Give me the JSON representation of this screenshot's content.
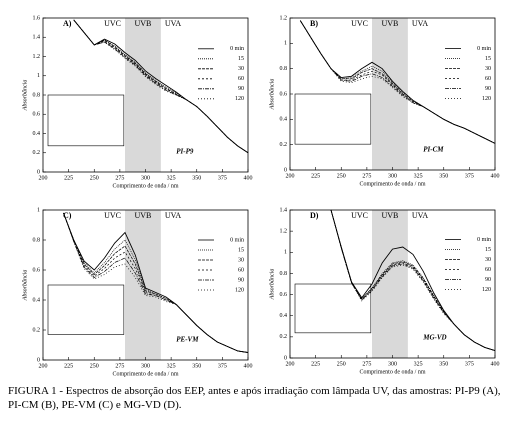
{
  "chart_data": [
    {
      "type": "line",
      "panel": "A)",
      "annotation": "PI-P9",
      "xlabel": "Comprimento de onda / nm",
      "ylabel": "Absorbância",
      "xlim": [
        200,
        400
      ],
      "xticks": [
        200,
        225,
        250,
        275,
        300,
        325,
        350,
        375,
        400
      ],
      "ylim": [
        0,
        1.6
      ],
      "yticks": [
        0.0,
        0.2,
        0.4,
        0.6,
        0.8,
        1.0,
        1.2,
        1.4,
        1.6
      ],
      "legend": "right",
      "regions": [
        {
          "label": "UVC",
          "range": [
            200,
            280
          ]
        },
        {
          "label": "UVB",
          "range": [
            280,
            315
          ],
          "shaded": true
        },
        {
          "label": "UVA",
          "range": [
            315,
            400
          ]
        }
      ],
      "x": [
        230,
        240,
        250,
        260,
        270,
        280,
        290,
        300,
        310,
        320,
        330,
        340,
        350,
        360,
        370,
        380,
        390,
        400
      ],
      "series": [
        {
          "name": "0 min",
          "color": "#000000",
          "dash": "none",
          "values": [
            1.58,
            1.45,
            1.32,
            1.38,
            1.33,
            1.24,
            1.16,
            1.05,
            0.97,
            0.9,
            0.83,
            0.75,
            0.68,
            0.58,
            0.47,
            0.36,
            0.27,
            0.2
          ]
        },
        {
          "name": "15",
          "color": "#000000",
          "dash": "1,1",
          "values": [
            1.58,
            1.45,
            1.32,
            1.37,
            1.31,
            1.22,
            1.14,
            1.03,
            0.95,
            0.88,
            0.82,
            0.75,
            0.68,
            0.58,
            0.47,
            0.36,
            0.27,
            0.2
          ]
        },
        {
          "name": "30",
          "color": "#000000",
          "dash": "3,1",
          "values": [
            1.58,
            1.45,
            1.32,
            1.37,
            1.3,
            1.21,
            1.13,
            1.02,
            0.94,
            0.87,
            0.81,
            0.75,
            0.68,
            0.58,
            0.47,
            0.36,
            0.27,
            0.2
          ]
        },
        {
          "name": "60",
          "color": "#000000",
          "dash": "2,2",
          "values": [
            1.58,
            1.45,
            1.32,
            1.36,
            1.29,
            1.2,
            1.12,
            1.01,
            0.93,
            0.86,
            0.81,
            0.75,
            0.68,
            0.58,
            0.47,
            0.36,
            0.27,
            0.2
          ]
        },
        {
          "name": "90",
          "color": "#000000",
          "dash": "4,1,1,1",
          "values": [
            1.58,
            1.45,
            1.32,
            1.35,
            1.28,
            1.19,
            1.11,
            1.0,
            0.92,
            0.85,
            0.8,
            0.75,
            0.68,
            0.58,
            0.47,
            0.36,
            0.27,
            0.2
          ]
        },
        {
          "name": "120",
          "color": "#000000",
          "dash": "1,2",
          "values": [
            1.58,
            1.45,
            1.32,
            1.35,
            1.27,
            1.18,
            1.1,
            0.99,
            0.91,
            0.84,
            0.8,
            0.75,
            0.68,
            0.58,
            0.47,
            0.36,
            0.27,
            0.2
          ]
        }
      ]
    },
    {
      "type": "line",
      "panel": "B)",
      "annotation": "PI-CM",
      "xlabel": "Comprimento de onda / nm",
      "ylabel": "Absorbância",
      "xlim": [
        200,
        400
      ],
      "xticks": [
        200,
        225,
        250,
        275,
        300,
        325,
        350,
        375,
        400
      ],
      "ylim": [
        0,
        1.2
      ],
      "yticks": [
        0.0,
        0.2,
        0.4,
        0.6,
        0.8,
        1.0,
        1.2
      ],
      "legend": "right",
      "regions": [
        {
          "label": "UVC",
          "range": [
            200,
            280
          ]
        },
        {
          "label": "UVB",
          "range": [
            280,
            315
          ],
          "shaded": true
        },
        {
          "label": "UVA",
          "range": [
            315,
            400
          ]
        }
      ],
      "x": [
        210,
        220,
        230,
        240,
        250,
        260,
        270,
        280,
        290,
        300,
        310,
        320,
        330,
        340,
        350,
        360,
        370,
        380,
        390,
        400
      ],
      "series": [
        {
          "name": "0 min",
          "color": "#000000",
          "dash": "none",
          "values": [
            1.18,
            1.05,
            0.92,
            0.8,
            0.73,
            0.74,
            0.8,
            0.85,
            0.8,
            0.7,
            0.62,
            0.55,
            0.5,
            0.45,
            0.4,
            0.36,
            0.33,
            0.29,
            0.25,
            0.21
          ]
        },
        {
          "name": "15",
          "color": "#000000",
          "dash": "1,1",
          "values": [
            1.18,
            1.05,
            0.92,
            0.8,
            0.72,
            0.73,
            0.78,
            0.82,
            0.78,
            0.69,
            0.61,
            0.55,
            0.5,
            0.45,
            0.4,
            0.36,
            0.33,
            0.29,
            0.25,
            0.21
          ]
        },
        {
          "name": "30",
          "color": "#000000",
          "dash": "3,1",
          "values": [
            1.18,
            1.05,
            0.92,
            0.8,
            0.72,
            0.72,
            0.77,
            0.8,
            0.76,
            0.68,
            0.6,
            0.54,
            0.5,
            0.45,
            0.4,
            0.36,
            0.33,
            0.29,
            0.25,
            0.21
          ]
        },
        {
          "name": "60",
          "color": "#000000",
          "dash": "2,2",
          "values": [
            1.18,
            1.05,
            0.92,
            0.8,
            0.71,
            0.71,
            0.75,
            0.78,
            0.75,
            0.67,
            0.6,
            0.54,
            0.5,
            0.45,
            0.4,
            0.36,
            0.33,
            0.29,
            0.25,
            0.21
          ]
        },
        {
          "name": "90",
          "color": "#000000",
          "dash": "4,1,1,1",
          "values": [
            1.18,
            1.05,
            0.92,
            0.8,
            0.71,
            0.7,
            0.74,
            0.76,
            0.73,
            0.66,
            0.59,
            0.53,
            0.5,
            0.45,
            0.4,
            0.36,
            0.33,
            0.29,
            0.25,
            0.21
          ]
        },
        {
          "name": "120",
          "color": "#000000",
          "dash": "1,2",
          "values": [
            1.18,
            1.05,
            0.92,
            0.8,
            0.7,
            0.69,
            0.72,
            0.74,
            0.72,
            0.65,
            0.58,
            0.53,
            0.5,
            0.45,
            0.4,
            0.36,
            0.33,
            0.29,
            0.25,
            0.21
          ]
        }
      ]
    },
    {
      "type": "line",
      "panel": "C)",
      "annotation": "PE-VM",
      "xlabel": "Comprimento de onda / nm",
      "ylabel": "Absorbância",
      "xlim": [
        200,
        400
      ],
      "xticks": [
        200,
        225,
        250,
        275,
        300,
        325,
        350,
        375,
        400
      ],
      "ylim": [
        0,
        1.0
      ],
      "yticks": [
        0.0,
        0.2,
        0.4,
        0.6,
        0.8,
        1.0
      ],
      "legend": "right",
      "regions": [
        {
          "label": "UVC",
          "range": [
            200,
            280
          ]
        },
        {
          "label": "UVB",
          "range": [
            280,
            315
          ],
          "shaded": true
        },
        {
          "label": "UVA",
          "range": [
            315,
            400
          ]
        }
      ],
      "x": [
        220,
        230,
        240,
        250,
        260,
        270,
        280,
        290,
        300,
        310,
        320,
        330,
        340,
        350,
        360,
        370,
        380,
        390,
        400
      ],
      "series": [
        {
          "name": "0 min",
          "color": "#000000",
          "dash": "none",
          "values": [
            0.98,
            0.8,
            0.66,
            0.6,
            0.68,
            0.78,
            0.85,
            0.7,
            0.48,
            0.45,
            0.42,
            0.37,
            0.3,
            0.23,
            0.17,
            0.12,
            0.09,
            0.06,
            0.05
          ]
        },
        {
          "name": "15",
          "color": "#000000",
          "dash": "1,1",
          "values": [
            0.98,
            0.8,
            0.65,
            0.58,
            0.65,
            0.74,
            0.8,
            0.67,
            0.47,
            0.44,
            0.41,
            0.37,
            0.3,
            0.23,
            0.17,
            0.12,
            0.09,
            0.06,
            0.05
          ]
        },
        {
          "name": "30",
          "color": "#000000",
          "dash": "3,1",
          "values": [
            0.98,
            0.8,
            0.64,
            0.57,
            0.63,
            0.71,
            0.76,
            0.64,
            0.46,
            0.44,
            0.41,
            0.37,
            0.3,
            0.23,
            0.17,
            0.12,
            0.09,
            0.06,
            0.05
          ]
        },
        {
          "name": "60",
          "color": "#000000",
          "dash": "2,2",
          "values": [
            0.98,
            0.79,
            0.63,
            0.56,
            0.61,
            0.68,
            0.72,
            0.61,
            0.45,
            0.43,
            0.4,
            0.37,
            0.3,
            0.23,
            0.17,
            0.12,
            0.09,
            0.06,
            0.05
          ]
        },
        {
          "name": "90",
          "color": "#000000",
          "dash": "4,1,1,1",
          "values": [
            0.98,
            0.79,
            0.62,
            0.55,
            0.59,
            0.65,
            0.68,
            0.58,
            0.44,
            0.43,
            0.4,
            0.37,
            0.3,
            0.23,
            0.17,
            0.12,
            0.09,
            0.06,
            0.05
          ]
        },
        {
          "name": "120",
          "color": "#000000",
          "dash": "1,2",
          "values": [
            0.98,
            0.79,
            0.61,
            0.54,
            0.57,
            0.62,
            0.64,
            0.55,
            0.43,
            0.42,
            0.39,
            0.37,
            0.3,
            0.23,
            0.17,
            0.12,
            0.09,
            0.06,
            0.05
          ]
        }
      ]
    },
    {
      "type": "line",
      "panel": "D)",
      "annotation": "MG-VD",
      "xlabel": "Comprimento de onda / nm",
      "ylabel": "Absorbância",
      "xlim": [
        200,
        400
      ],
      "xticks": [
        200,
        225,
        250,
        275,
        300,
        325,
        350,
        375,
        400
      ],
      "ylim": [
        0,
        1.4
      ],
      "yticks": [
        0.0,
        0.2,
        0.4,
        0.6,
        0.8,
        1.0,
        1.2,
        1.4
      ],
      "legend": "right",
      "regions": [
        {
          "label": "UVC",
          "range": [
            200,
            280
          ]
        },
        {
          "label": "UVB",
          "range": [
            280,
            315
          ],
          "shaded": true
        },
        {
          "label": "UVA",
          "range": [
            315,
            400
          ]
        }
      ],
      "x": [
        240,
        250,
        260,
        270,
        280,
        290,
        300,
        310,
        320,
        330,
        340,
        350,
        360,
        370,
        380,
        390,
        400
      ],
      "series": [
        {
          "name": "0 min",
          "color": "#000000",
          "dash": "none",
          "values": [
            1.4,
            1.05,
            0.72,
            0.57,
            0.7,
            0.9,
            1.03,
            1.05,
            0.98,
            0.82,
            0.62,
            0.45,
            0.32,
            0.22,
            0.15,
            0.1,
            0.07
          ]
        },
        {
          "name": "15",
          "color": "#000000",
          "dash": "1,1",
          "values": [
            1.4,
            1.05,
            0.72,
            0.56,
            0.66,
            0.8,
            0.9,
            0.92,
            0.88,
            0.76,
            0.6,
            0.44,
            0.32,
            0.22,
            0.15,
            0.1,
            0.07
          ]
        },
        {
          "name": "30",
          "color": "#000000",
          "dash": "3,1",
          "values": [
            1.4,
            1.05,
            0.72,
            0.56,
            0.66,
            0.79,
            0.89,
            0.91,
            0.87,
            0.75,
            0.59,
            0.44,
            0.32,
            0.22,
            0.15,
            0.1,
            0.07
          ]
        },
        {
          "name": "60",
          "color": "#000000",
          "dash": "2,2",
          "values": [
            1.4,
            1.04,
            0.71,
            0.55,
            0.65,
            0.78,
            0.88,
            0.9,
            0.86,
            0.74,
            0.58,
            0.43,
            0.32,
            0.22,
            0.15,
            0.1,
            0.07
          ]
        },
        {
          "name": "90",
          "color": "#000000",
          "dash": "4,1,1,1",
          "values": [
            1.4,
            1.04,
            0.71,
            0.55,
            0.64,
            0.77,
            0.87,
            0.89,
            0.85,
            0.73,
            0.57,
            0.43,
            0.32,
            0.22,
            0.15,
            0.1,
            0.07
          ]
        },
        {
          "name": "120",
          "color": "#000000",
          "dash": "1,2",
          "values": [
            1.4,
            1.04,
            0.71,
            0.54,
            0.63,
            0.76,
            0.86,
            0.88,
            0.84,
            0.72,
            0.56,
            0.42,
            0.32,
            0.22,
            0.15,
            0.1,
            0.07
          ]
        }
      ]
    }
  ],
  "caption": "FIGURA 1 -  Espectros de absorção dos EEP, antes e após irradiação com lâmpada UV, das amostras: PI-P9 (A), PI-CM (B), PE-VM (C) e MG-VD (D)."
}
